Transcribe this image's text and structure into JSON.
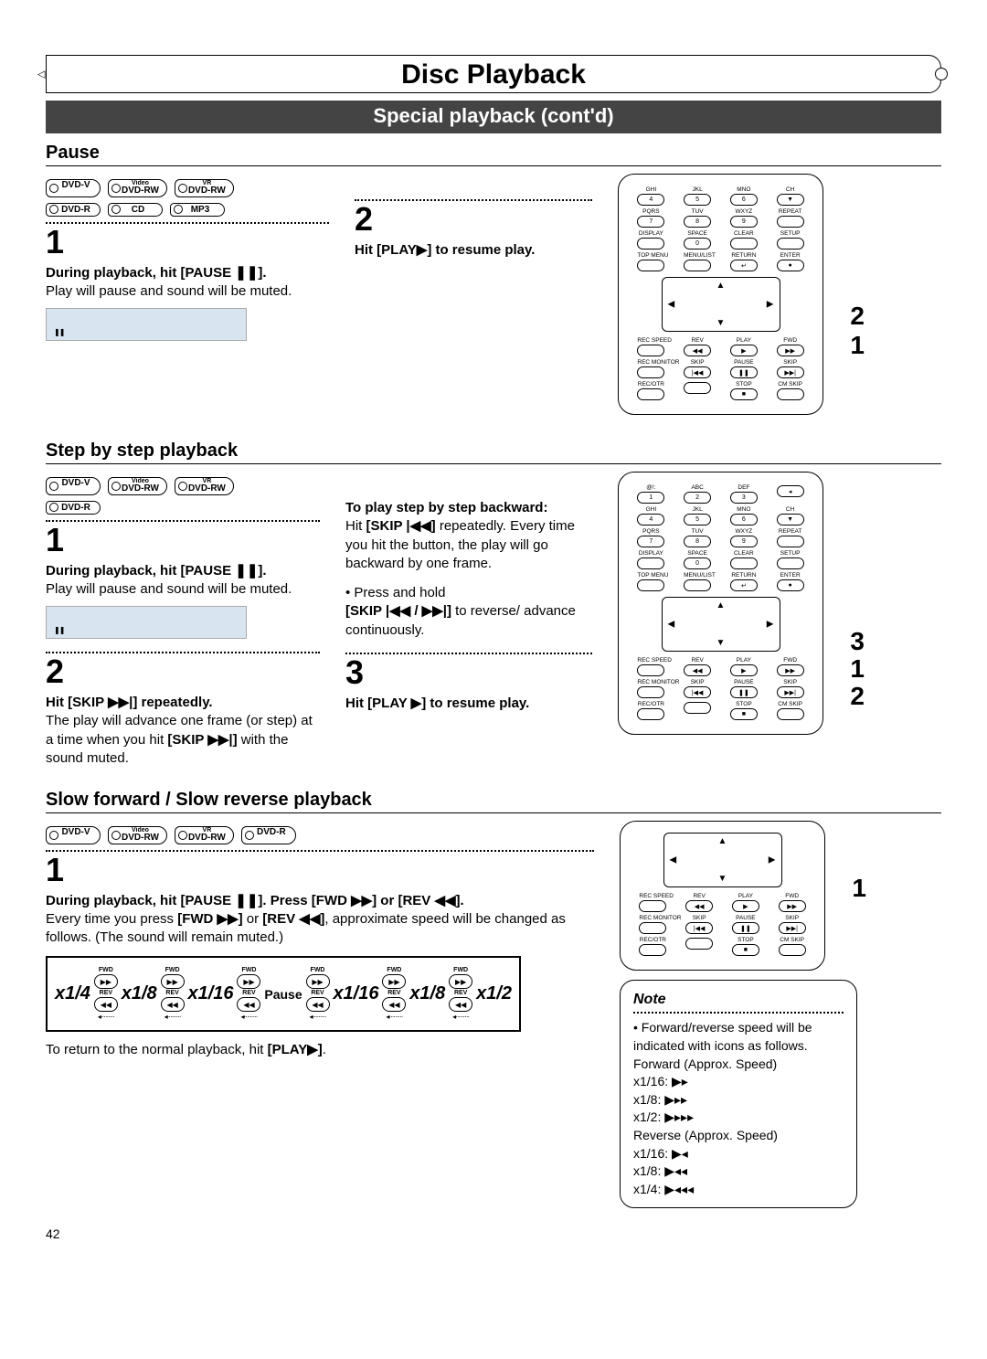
{
  "page_number": "42",
  "title": "Disc Playback",
  "subtitle": "Special playback (cont'd)",
  "sections": {
    "pause": {
      "heading": "Pause",
      "discs_row1": [
        "DVD-V",
        "DVD-RW",
        "DVD-RW"
      ],
      "discs_row1_sup": [
        "",
        "Video",
        "VR"
      ],
      "discs_row2": [
        "DVD-R",
        "CD",
        "MP3"
      ],
      "step1_num": "1",
      "step1_bold": "During playback, hit [PAUSE ❚❚].",
      "step1_text": "Play will pause and sound will be muted.",
      "step2_num": "2",
      "step2_bold": "Hit [PLAY▶] to resume play."
    },
    "step": {
      "heading": "Step by step playback",
      "discs_row1": [
        "DVD-V",
        "DVD-RW",
        "DVD-RW"
      ],
      "discs_row1_sup": [
        "",
        "Video",
        "VR"
      ],
      "discs_row2": [
        "DVD-R"
      ],
      "s1_num": "1",
      "s1_bold": "During playback, hit [PAUSE ❚❚].",
      "s1_text": "Play will pause and sound will be muted.",
      "s2_num": "2",
      "s2_bold": "Hit [SKIP ▶▶|] repeatedly.",
      "s2_text1": "The play will advance one frame (or step) at a time when you hit",
      "s2_bold2": "[SKIP ▶▶|]",
      "s2_text2": " with the sound muted.",
      "mid_bold": "To play step by step backward:",
      "mid_t1a": "Hit ",
      "mid_t1b": "[SKIP |◀◀]",
      "mid_t1c": " repeatedly. Every time you hit the button, the play will go backward by one frame.",
      "mid_t2a": "• Press and hold",
      "mid_t2b": "[SKIP |◀◀ / ▶▶|]",
      "mid_t2c": " to reverse/ advance continuously.",
      "s3_num": "3",
      "s3_bold": "Hit [PLAY ▶] to resume play."
    },
    "slow": {
      "heading": "Slow forward / Slow reverse playback",
      "discs": [
        "DVD-V",
        "DVD-RW",
        "DVD-RW",
        "DVD-R"
      ],
      "discs_sup": [
        "",
        "Video",
        "VR",
        ""
      ],
      "s1_num": "1",
      "s1_bold": "During playback, hit [PAUSE ❚❚]. Press [FWD ▶▶] or [REV ◀◀].",
      "s1_t1a": "Every time you press ",
      "s1_t1b": "[FWD ▶▶]",
      "s1_t1c": " or ",
      "s1_t1d": "[REV ◀◀]",
      "s1_t1e": ", approximate speed will be changed as follows. (The sound will remain muted.)",
      "return_a": "To return to the normal playback, hit ",
      "return_b": "[PLAY▶]",
      "return_c": ".",
      "speeds_left": [
        "x1/4",
        "x1/8",
        "x1/16"
      ],
      "speeds_right": [
        "x1/16",
        "x1/8",
        "x1/2"
      ],
      "pause_label": "Pause"
    }
  },
  "note": {
    "heading": "Note",
    "line1": "• Forward/reverse speed will be indicated with icons as follows.",
    "fwd_label": "Forward (Approx. Speed)",
    "fwd_items": [
      "x1/16: ▶▸",
      "x1/8:  ▶▸▸",
      "x1/2:  ▶▸▸▸"
    ],
    "rev_label": "Reverse (Approx. Speed)",
    "rev_items": [
      "x1/16: ▶◂",
      "x1/8:  ▶◂◂",
      "x1/4:  ▶◂◂◂"
    ]
  },
  "remote": {
    "row1": [
      [
        "GHI",
        "4"
      ],
      [
        "JKL",
        "5"
      ],
      [
        "MNO",
        "6"
      ],
      [
        "CH",
        "▼"
      ]
    ],
    "row2": [
      [
        "PQRS",
        "7"
      ],
      [
        "TUV",
        "8"
      ],
      [
        "WXYZ",
        "9"
      ],
      [
        "REPEAT",
        ""
      ]
    ],
    "row3": [
      [
        "DISPLAY",
        ""
      ],
      [
        "SPACE",
        "0"
      ],
      [
        "CLEAR",
        ""
      ],
      [
        "SETUP",
        ""
      ]
    ],
    "row4": [
      [
        "TOP MENU",
        ""
      ],
      [
        "MENU/LIST",
        ""
      ],
      [
        "RETURN",
        "↵"
      ],
      [
        "ENTER",
        "●"
      ]
    ],
    "lowA": [
      [
        "REC SPEED",
        ""
      ],
      [
        "REV",
        "◀◀"
      ],
      [
        "PLAY",
        "▶"
      ],
      [
        "FWD",
        "▶▶"
      ]
    ],
    "lowB": [
      [
        "REC MONITOR",
        ""
      ],
      [
        "SKIP",
        "|◀◀"
      ],
      [
        "PAUSE",
        "❚❚"
      ],
      [
        "SKIP",
        "▶▶|"
      ]
    ],
    "lowC": [
      [
        "REC/OTR",
        ""
      ],
      [
        "",
        ""
      ],
      [
        "STOP",
        "■"
      ],
      [
        "CM SKIP",
        ""
      ]
    ]
  },
  "remote_top": {
    "row0": [
      [
        "@!:",
        "1"
      ],
      [
        "ABC",
        "2"
      ],
      [
        "DEF",
        "3"
      ],
      [
        "",
        "◂"
      ]
    ]
  },
  "callouts": {
    "pause": [
      "2",
      "1"
    ],
    "step": [
      "3",
      "1",
      "2"
    ],
    "slow": [
      "1"
    ]
  },
  "colors": {
    "subtitle_bg": "#444444",
    "box_bg": "#d8e4f0"
  }
}
